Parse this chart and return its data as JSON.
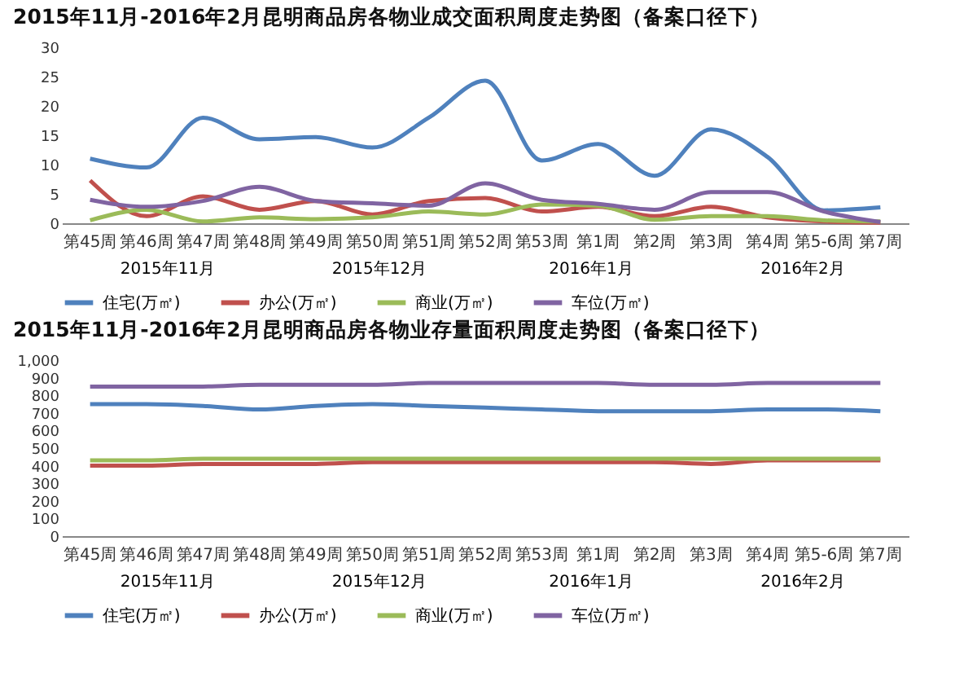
{
  "chart_data": [
    {
      "type": "line",
      "title": "2015年11月-2016年2月昆明商品房各物业成交面积周度走势图（备案口径下）",
      "categories": [
        "第45周",
        "第46周",
        "第47周",
        "第48周",
        "第49周",
        "第50周",
        "第51周",
        "第52周",
        "第53周",
        "第1周",
        "第2周",
        "第3周",
        "第4周",
        "第5-6周",
        "第7周"
      ],
      "series": [
        {
          "name": "住宅(万㎡)",
          "color": "#4f81bd",
          "values": [
            11,
            9.5,
            18,
            14.3,
            14.7,
            12.9,
            18,
            24.3,
            10.7,
            13.5,
            8.1,
            16,
            11.3,
            2.2,
            2.7
          ]
        },
        {
          "name": "办公(万㎡)",
          "color": "#c0504d",
          "values": [
            7.3,
            1.2,
            4.6,
            2.3,
            3.8,
            1.5,
            3.8,
            4.3,
            2,
            2.8,
            1.2,
            2.8,
            1,
            0.3,
            0.1
          ]
        },
        {
          "name": "商业(万㎡)",
          "color": "#9bbb59",
          "values": [
            0.5,
            2.3,
            0.3,
            1,
            0.7,
            1,
            2,
            1.5,
            3.2,
            3,
            0.6,
            1.2,
            1.2,
            0.5,
            0.3
          ]
        },
        {
          "name": "车位(万㎡)",
          "color": "#8064a2",
          "values": [
            4,
            2.8,
            3.8,
            6.2,
            3.8,
            3.4,
            3,
            6.8,
            4,
            3.3,
            2.3,
            5.3,
            5.3,
            2,
            0.2
          ]
        }
      ],
      "ylim": [
        0,
        30
      ],
      "yticks": [
        0,
        5,
        10,
        15,
        20,
        25,
        30
      ],
      "grid": false,
      "legend": "bottom",
      "line_style": "solid",
      "annotations": [
        "2015年11月",
        "2015年12月",
        "2016年1月",
        "2016年2月"
      ]
    },
    {
      "type": "line",
      "title": "2015年11月-2016年2月昆明商品房各物业存量面积周度走势图（备案口径下）",
      "categories": [
        "第45周",
        "第46周",
        "第47周",
        "第48周",
        "第49周",
        "第50周",
        "第51周",
        "第52周",
        "第53周",
        "第1周",
        "第2周",
        "第3周",
        "第4周",
        "第5-6周",
        "第7周"
      ],
      "series": [
        {
          "name": "住宅(万㎡)",
          "color": "#4f81bd",
          "values": [
            750,
            750,
            740,
            720,
            740,
            750,
            740,
            730,
            720,
            710,
            710,
            710,
            720,
            720,
            710
          ]
        },
        {
          "name": "办公(万㎡)",
          "color": "#c0504d",
          "values": [
            400,
            400,
            410,
            410,
            410,
            420,
            420,
            420,
            420,
            420,
            420,
            410,
            430,
            430,
            430
          ]
        },
        {
          "name": "商业(万㎡)",
          "color": "#9bbb59",
          "values": [
            430,
            430,
            440,
            440,
            440,
            440,
            440,
            440,
            440,
            440,
            440,
            440,
            440,
            440,
            440
          ]
        },
        {
          "name": "车位(万㎡)",
          "color": "#8064a2",
          "values": [
            850,
            850,
            850,
            860,
            860,
            860,
            870,
            870,
            870,
            870,
            860,
            860,
            870,
            870,
            870
          ]
        }
      ],
      "ylim": [
        0,
        1000
      ],
      "yticks": [
        0,
        100,
        200,
        300,
        400,
        500,
        600,
        700,
        800,
        900,
        {
          "value": 1000,
          "label": "1,000"
        }
      ],
      "grid": false,
      "legend": "bottom",
      "line_style": "solid",
      "annotations": [
        "2015年11月",
        "2015年12月",
        "2016年1月",
        "2016年2月"
      ]
    }
  ]
}
